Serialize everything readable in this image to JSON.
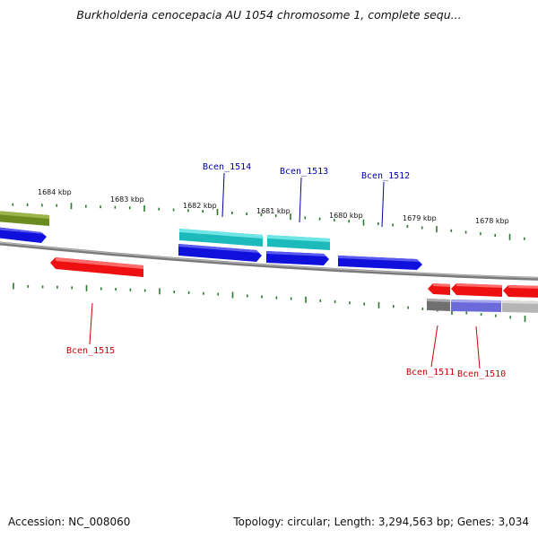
{
  "title": "Burkholderia cenocepacia AU 1054 chromosome 1, complete sequ...",
  "footer": {
    "accession": "Accession: NC_008060",
    "topology": "Topology: circular; Length: 3,294,563 bp; Genes: 3,034"
  },
  "ruler_labels": [
    "1684 kbp",
    "1683 kbp",
    "1682 kbp",
    "1681 kbp",
    "1680 kbp",
    "1679 kbp",
    "1678 kbp"
  ],
  "gene_labels_forward": [
    "Bcen_1514",
    "Bcen_1513",
    "Bcen_1512"
  ],
  "gene_labels_reverse": [
    "Bcen_1515",
    "Bcen_1511",
    "Bcen_1510"
  ],
  "colors": {
    "forward_label": "#0000aa",
    "reverse_label": "#cc0000",
    "backbone": "#8a8a8a",
    "ticks": "#2a7a2a",
    "gene_blue": "#1010dd",
    "gene_cyan": "#20c8c8",
    "gene_red": "#ee1010",
    "gene_olive": "#6b8a20",
    "gene_gray": "#777777",
    "gene_lilac": "#7070dd",
    "gene_lightgray": "#bbbbbb"
  }
}
